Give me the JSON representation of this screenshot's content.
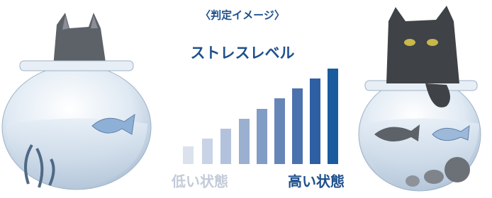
{
  "header": {
    "title": "〈判定イメージ〉",
    "subtitle": "ストレスレベル"
  },
  "scale": {
    "low_label": "低い状態",
    "high_label": "高い状態"
  }
}
